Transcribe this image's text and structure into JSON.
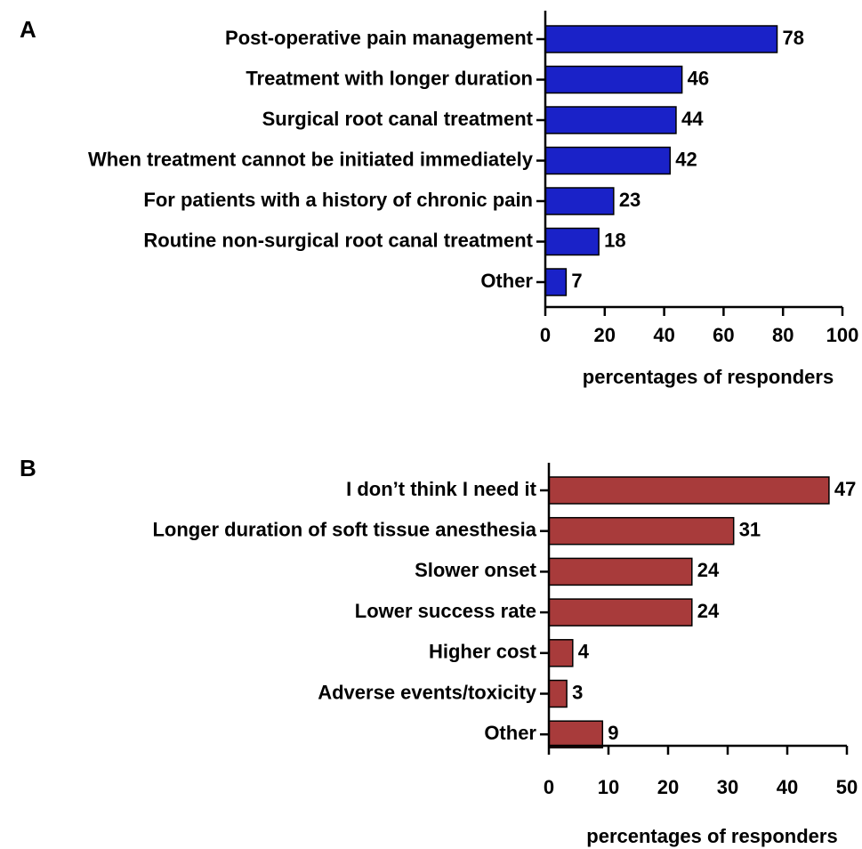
{
  "chart_data": [
    {
      "type": "bar",
      "orientation": "horizontal",
      "panel_label": "A",
      "categories": [
        "Post-operative pain management",
        "Treatment with longer duration",
        "Surgical root canal treatment",
        "When treatment cannot be initiated immediately",
        "For patients with a history of chronic pain",
        "Routine non-surgical root canal treatment",
        "Other"
      ],
      "values": [
        78,
        46,
        44,
        42,
        23,
        18,
        7
      ],
      "color": "#1a22c8",
      "xlabel": "percentages of responders",
      "xlim": [
        0,
        100
      ],
      "xticks": [
        0,
        20,
        40,
        60,
        80,
        100
      ]
    },
    {
      "type": "bar",
      "orientation": "horizontal",
      "panel_label": "B",
      "categories": [
        "I don’t think I need it",
        "Longer duration of soft tissue anesthesia",
        "Slower onset",
        "Lower success rate",
        "Higher cost",
        "Adverse events/toxicity",
        "Other"
      ],
      "values": [
        47,
        31,
        24,
        24,
        4,
        3,
        9
      ],
      "color": "#a83b3b",
      "xlabel": "percentages of responders",
      "xlim": [
        0,
        50
      ],
      "xticks": [
        0,
        10,
        20,
        30,
        40,
        50
      ]
    }
  ]
}
